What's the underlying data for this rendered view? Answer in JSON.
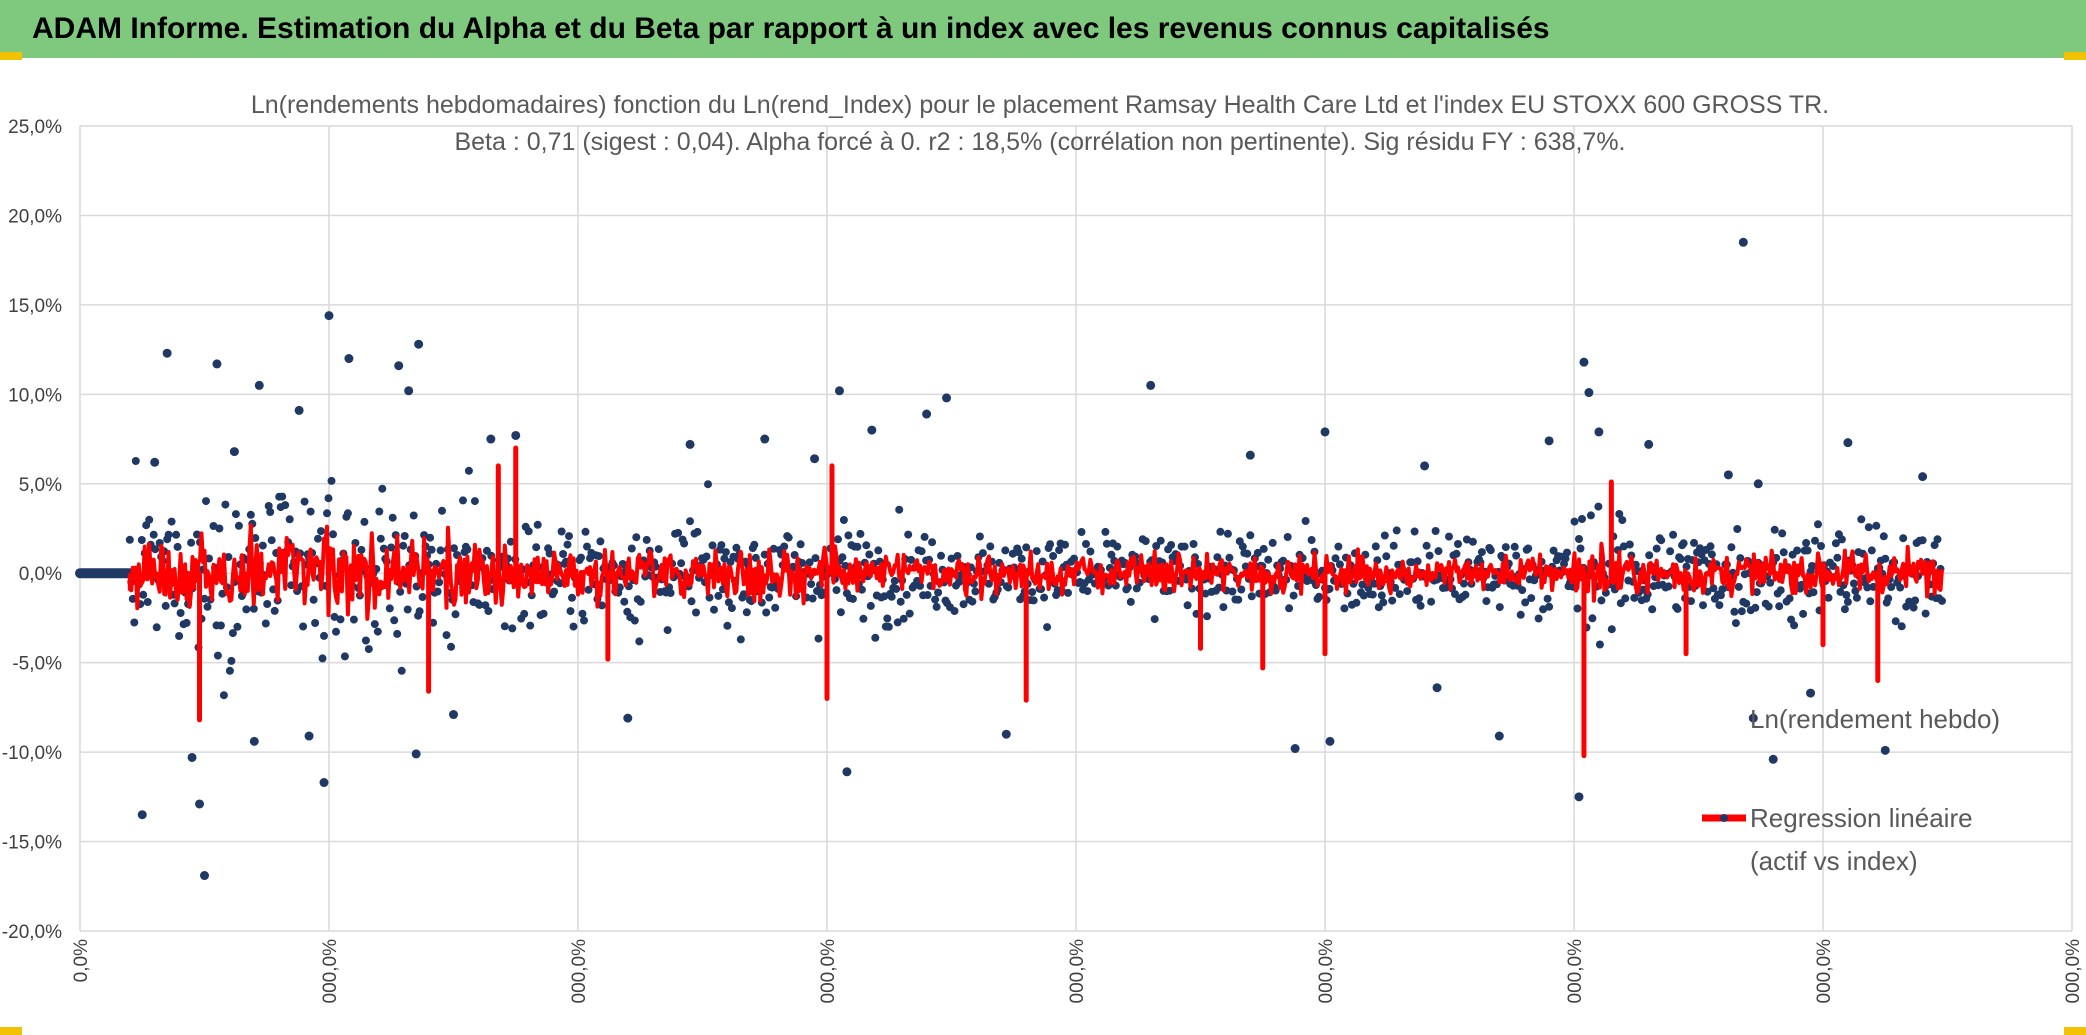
{
  "header": {
    "title": "ADAM Informe. Estimation du Alpha et du Beta par rapport à un index avec les revenus connus capitalisés"
  },
  "colors": {
    "banner": "#7fc97f",
    "scatter": "#1f3864",
    "regression": "#ff0000",
    "grid": "#d9d9d9",
    "corner": "#f2c200"
  },
  "chart_data": {
    "type": "scatter",
    "title": "Ln(rendements hebdomadaires) fonction du Ln(rend_Index) pour le placement Ramsay Health Care Ltd et l'index EU STOXX 600 GROSS TR.",
    "subtitle": "Beta : 0,71 (sigest : 0,04). Alpha forcé à 0. r2 : 18,5% (corrélation non pertinente). Sig résidu FY : 638,7%.",
    "xlabel": "",
    "ylabel": "",
    "ylim": [
      -20,
      25
    ],
    "xlim": [
      0,
      800
    ],
    "grid": true,
    "legend_position": "bottom-right",
    "y_ticks": [
      "25,0%",
      "20,0%",
      "15,0%",
      "10,0%",
      "5,0%",
      "0,0%",
      "-5,0%",
      "-10,0%",
      "-15,0%",
      "-20,0%"
    ],
    "x_ticks": [
      "0,0%",
      "000,0%",
      "000,0%",
      "000,0%",
      "000,0%",
      "000,0%",
      "000,0%",
      "000,0%",
      "000,0%"
    ],
    "series": [
      {
        "name": "Ln(rendement hebdo)",
        "kind": "points",
        "highlight_points": [
          [
            25,
            -13.5
          ],
          [
            30,
            6.2
          ],
          [
            35,
            12.3
          ],
          [
            45,
            -10.3
          ],
          [
            48,
            -12.9
          ],
          [
            50,
            -16.9
          ],
          [
            55,
            11.7
          ],
          [
            62,
            6.8
          ],
          [
            70,
            -9.4
          ],
          [
            72,
            10.5
          ],
          [
            88,
            9.1
          ],
          [
            92,
            -9.1
          ],
          [
            98,
            -11.7
          ],
          [
            100,
            14.4
          ],
          [
            108,
            12.0
          ],
          [
            128,
            11.6
          ],
          [
            132,
            10.2
          ],
          [
            135,
            -10.1
          ],
          [
            136,
            12.8
          ],
          [
            150,
            -7.9
          ],
          [
            165,
            7.5
          ],
          [
            175,
            7.7
          ],
          [
            220,
            -8.1
          ],
          [
            245,
            7.2
          ],
          [
            275,
            7.5
          ],
          [
            295,
            6.4
          ],
          [
            305,
            10.2
          ],
          [
            308,
            -11.1
          ],
          [
            318,
            8.0
          ],
          [
            340,
            8.9
          ],
          [
            348,
            9.8
          ],
          [
            372,
            -9.0
          ],
          [
            430,
            10.5
          ],
          [
            470,
            6.6
          ],
          [
            488,
            -9.8
          ],
          [
            500,
            7.9
          ],
          [
            502,
            -9.4
          ],
          [
            540,
            6.0
          ],
          [
            545,
            -6.4
          ],
          [
            570,
            -9.1
          ],
          [
            590,
            7.4
          ],
          [
            602,
            -12.5
          ],
          [
            604,
            11.8
          ],
          [
            606,
            10.1
          ],
          [
            610,
            7.9
          ],
          [
            630,
            7.2
          ],
          [
            662,
            5.5
          ],
          [
            668,
            18.5
          ],
          [
            672,
            -8.1
          ],
          [
            674,
            5.0
          ],
          [
            680,
            -10.4
          ],
          [
            695,
            -6.7
          ],
          [
            710,
            7.3
          ],
          [
            725,
            -9.9
          ],
          [
            740,
            5.4
          ]
        ]
      },
      {
        "name": "Regression linéaire (actif vs index)",
        "kind": "line",
        "highlight_spikes": [
          [
            48,
            -8.2
          ],
          [
            140,
            -6.6
          ],
          [
            168,
            6.0
          ],
          [
            175,
            7.0
          ],
          [
            212,
            -4.8
          ],
          [
            300,
            -7.0
          ],
          [
            302,
            6.0
          ],
          [
            380,
            -7.1
          ],
          [
            450,
            -4.2
          ],
          [
            475,
            -5.3
          ],
          [
            500,
            -4.5
          ],
          [
            604,
            -10.2
          ],
          [
            615,
            5.1
          ],
          [
            645,
            -4.5
          ],
          [
            700,
            -4.0
          ],
          [
            722,
            -6.0
          ]
        ]
      }
    ]
  },
  "legend": {
    "entries": [
      "Ln(rendement hebdo)",
      "Regression linéaire",
      "(actif vs index)"
    ]
  }
}
